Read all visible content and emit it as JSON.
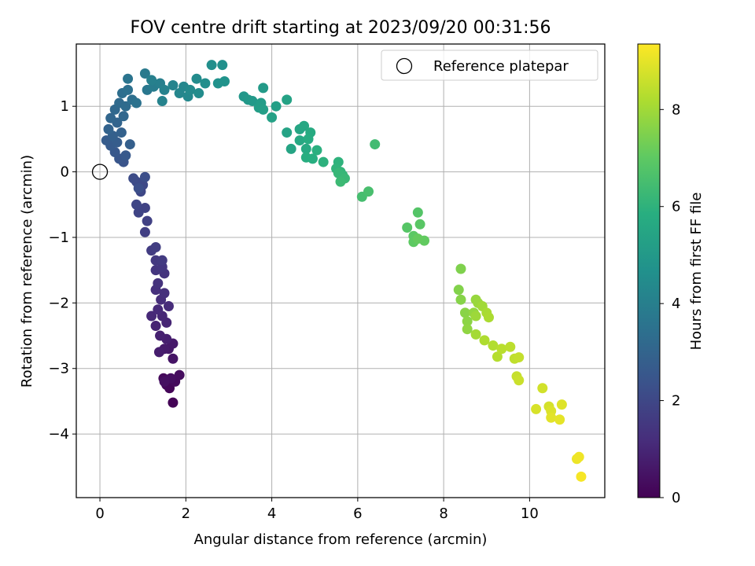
{
  "chart_data": {
    "type": "scatter",
    "title": "FOV centre drift starting at 2023/09/20 00:31:56",
    "xlabel": "Angular distance from reference (arcmin)",
    "ylabel": "Rotation from reference (arcmin)",
    "xlim": [
      -0.55,
      11.75
    ],
    "ylim": [
      -4.97,
      1.95
    ],
    "xticks": [
      0,
      2,
      4,
      6,
      8,
      10
    ],
    "yticks": [
      1,
      0,
      -1,
      -2,
      -3,
      -4
    ],
    "xtick_labels": [
      "0",
      "2",
      "4",
      "6",
      "8",
      "10"
    ],
    "ytick_labels": [
      "1",
      "0",
      "−1",
      "−2",
      "−3",
      "−4"
    ],
    "grid": true,
    "legend": {
      "position": "top-right",
      "entries": [
        {
          "label": "Reference platepar",
          "marker": "open-circle"
        }
      ]
    },
    "reference_point": {
      "x": 0,
      "y": 0
    },
    "colormap": "viridis",
    "colorbar": {
      "label": "Hours from first FF file",
      "range": [
        0,
        9.35
      ],
      "ticks": [
        0,
        2,
        4,
        6,
        8
      ],
      "tick_labels": [
        "0",
        "2",
        "4",
        "6",
        "8"
      ]
    },
    "points": [
      {
        "x": 1.7,
        "y": -3.52,
        "h": 0.05
      },
      {
        "x": 1.62,
        "y": -3.3,
        "h": 0.1
      },
      {
        "x": 1.55,
        "y": -3.25,
        "h": 0.15
      },
      {
        "x": 1.48,
        "y": -3.15,
        "h": 0.2
      },
      {
        "x": 1.75,
        "y": -3.2,
        "h": 0.25
      },
      {
        "x": 1.85,
        "y": -3.1,
        "h": 0.3
      },
      {
        "x": 1.65,
        "y": -3.15,
        "h": 0.35
      },
      {
        "x": 1.5,
        "y": -3.2,
        "h": 0.4
      },
      {
        "x": 1.7,
        "y": -2.85,
        "h": 0.5
      },
      {
        "x": 1.6,
        "y": -2.7,
        "h": 0.6
      },
      {
        "x": 1.7,
        "y": -2.62,
        "h": 0.65
      },
      {
        "x": 1.5,
        "y": -2.7,
        "h": 0.7
      },
      {
        "x": 1.38,
        "y": -2.75,
        "h": 0.75
      },
      {
        "x": 1.55,
        "y": -2.55,
        "h": 0.8
      },
      {
        "x": 1.4,
        "y": -2.5,
        "h": 0.85
      },
      {
        "x": 1.3,
        "y": -2.35,
        "h": 0.9
      },
      {
        "x": 1.55,
        "y": -2.3,
        "h": 0.95
      },
      {
        "x": 1.45,
        "y": -2.2,
        "h": 1.0
      },
      {
        "x": 1.2,
        "y": -2.2,
        "h": 1.05
      },
      {
        "x": 1.35,
        "y": -2.1,
        "h": 1.1
      },
      {
        "x": 1.6,
        "y": -2.05,
        "h": 1.15
      },
      {
        "x": 1.42,
        "y": -1.95,
        "h": 1.2
      },
      {
        "x": 1.5,
        "y": -1.85,
        "h": 1.25
      },
      {
        "x": 1.3,
        "y": -1.8,
        "h": 1.3
      },
      {
        "x": 1.35,
        "y": -1.7,
        "h": 1.35
      },
      {
        "x": 1.5,
        "y": -1.55,
        "h": 1.4
      },
      {
        "x": 1.3,
        "y": -1.5,
        "h": 1.45
      },
      {
        "x": 1.45,
        "y": -1.45,
        "h": 1.5
      },
      {
        "x": 1.3,
        "y": -1.35,
        "h": 1.55
      },
      {
        "x": 1.45,
        "y": -1.35,
        "h": 1.6
      },
      {
        "x": 1.2,
        "y": -1.2,
        "h": 1.65
      },
      {
        "x": 1.3,
        "y": -1.15,
        "h": 1.7
      },
      {
        "x": 1.05,
        "y": -0.92,
        "h": 1.75
      },
      {
        "x": 1.1,
        "y": -0.75,
        "h": 1.8
      },
      {
        "x": 1.05,
        "y": -0.55,
        "h": 1.85
      },
      {
        "x": 0.9,
        "y": -0.62,
        "h": 1.9
      },
      {
        "x": 0.85,
        "y": -0.5,
        "h": 1.95
      },
      {
        "x": 0.95,
        "y": -0.3,
        "h": 2.0
      },
      {
        "x": 1.0,
        "y": -0.2,
        "h": 2.05
      },
      {
        "x": 0.85,
        "y": -0.15,
        "h": 2.1
      },
      {
        "x": 0.78,
        "y": -0.1,
        "h": 2.15
      },
      {
        "x": 1.05,
        "y": -0.08,
        "h": 2.2
      },
      {
        "x": 0.9,
        "y": -0.25,
        "h": 2.25
      },
      {
        "x": 0.55,
        "y": 0.15,
        "h": 2.4
      },
      {
        "x": 0.45,
        "y": 0.2,
        "h": 2.5
      },
      {
        "x": 0.35,
        "y": 0.3,
        "h": 2.55
      },
      {
        "x": 0.6,
        "y": 0.25,
        "h": 2.6
      },
      {
        "x": 0.25,
        "y": 0.4,
        "h": 2.65
      },
      {
        "x": 0.15,
        "y": 0.48,
        "h": 2.7
      },
      {
        "x": 0.4,
        "y": 0.45,
        "h": 2.75
      },
      {
        "x": 0.7,
        "y": 0.42,
        "h": 2.8
      },
      {
        "x": 0.3,
        "y": 0.55,
        "h": 2.85
      },
      {
        "x": 0.5,
        "y": 0.6,
        "h": 2.9
      },
      {
        "x": 0.2,
        "y": 0.65,
        "h": 2.95
      },
      {
        "x": 0.4,
        "y": 0.75,
        "h": 3.0
      },
      {
        "x": 0.25,
        "y": 0.82,
        "h": 3.05
      },
      {
        "x": 0.55,
        "y": 0.85,
        "h": 3.1
      },
      {
        "x": 0.35,
        "y": 0.95,
        "h": 3.15
      },
      {
        "x": 0.45,
        "y": 1.05,
        "h": 3.2
      },
      {
        "x": 0.6,
        "y": 1.0,
        "h": 3.25
      },
      {
        "x": 0.52,
        "y": 1.2,
        "h": 3.35
      },
      {
        "x": 0.75,
        "y": 1.1,
        "h": 3.4
      },
      {
        "x": 0.65,
        "y": 1.25,
        "h": 3.45
      },
      {
        "x": 0.85,
        "y": 1.05,
        "h": 3.5
      },
      {
        "x": 0.65,
        "y": 1.42,
        "h": 3.6
      },
      {
        "x": 1.1,
        "y": 1.25,
        "h": 3.7
      },
      {
        "x": 1.05,
        "y": 1.5,
        "h": 3.8
      },
      {
        "x": 1.25,
        "y": 1.3,
        "h": 3.9
      },
      {
        "x": 1.4,
        "y": 1.35,
        "h": 4.0
      },
      {
        "x": 1.2,
        "y": 1.4,
        "h": 4.05
      },
      {
        "x": 1.5,
        "y": 1.25,
        "h": 4.1
      },
      {
        "x": 1.45,
        "y": 1.08,
        "h": 4.15
      },
      {
        "x": 1.7,
        "y": 1.32,
        "h": 4.2
      },
      {
        "x": 1.85,
        "y": 1.2,
        "h": 4.25
      },
      {
        "x": 1.95,
        "y": 1.3,
        "h": 4.3
      },
      {
        "x": 2.05,
        "y": 1.15,
        "h": 4.35
      },
      {
        "x": 2.1,
        "y": 1.25,
        "h": 4.4
      },
      {
        "x": 2.25,
        "y": 1.42,
        "h": 4.45
      },
      {
        "x": 2.3,
        "y": 1.2,
        "h": 4.5
      },
      {
        "x": 2.45,
        "y": 1.35,
        "h": 4.55
      },
      {
        "x": 2.6,
        "y": 1.63,
        "h": 4.6
      },
      {
        "x": 2.85,
        "y": 1.63,
        "h": 4.65
      },
      {
        "x": 2.75,
        "y": 1.35,
        "h": 4.7
      },
      {
        "x": 2.9,
        "y": 1.38,
        "h": 4.75
      },
      {
        "x": 3.35,
        "y": 1.15,
        "h": 4.9
      },
      {
        "x": 3.45,
        "y": 1.1,
        "h": 4.95
      },
      {
        "x": 3.55,
        "y": 1.08,
        "h": 5.0
      },
      {
        "x": 3.8,
        "y": 1.28,
        "h": 5.05
      },
      {
        "x": 3.75,
        "y": 1.05,
        "h": 5.1
      },
      {
        "x": 3.7,
        "y": 0.98,
        "h": 5.15
      },
      {
        "x": 3.8,
        "y": 0.95,
        "h": 5.2
      },
      {
        "x": 4.1,
        "y": 1.0,
        "h": 5.25
      },
      {
        "x": 4.0,
        "y": 0.83,
        "h": 5.3
      },
      {
        "x": 4.35,
        "y": 1.1,
        "h": 5.35
      },
      {
        "x": 4.35,
        "y": 0.6,
        "h": 5.4
      },
      {
        "x": 4.45,
        "y": 0.35,
        "h": 5.45
      },
      {
        "x": 4.65,
        "y": 0.65,
        "h": 5.5
      },
      {
        "x": 4.75,
        "y": 0.7,
        "h": 5.55
      },
      {
        "x": 4.65,
        "y": 0.48,
        "h": 5.6
      },
      {
        "x": 4.8,
        "y": 0.35,
        "h": 5.65
      },
      {
        "x": 4.9,
        "y": 0.6,
        "h": 5.7
      },
      {
        "x": 4.85,
        "y": 0.5,
        "h": 5.75
      },
      {
        "x": 4.8,
        "y": 0.22,
        "h": 5.8
      },
      {
        "x": 4.95,
        "y": 0.2,
        "h": 5.85
      },
      {
        "x": 5.05,
        "y": 0.33,
        "h": 5.9
      },
      {
        "x": 5.2,
        "y": 0.15,
        "h": 5.95
      },
      {
        "x": 5.55,
        "y": 0.15,
        "h": 6.0
      },
      {
        "x": 5.5,
        "y": 0.05,
        "h": 6.05
      },
      {
        "x": 5.6,
        "y": 0.0,
        "h": 6.1
      },
      {
        "x": 5.65,
        "y": -0.05,
        "h": 6.15
      },
      {
        "x": 5.55,
        "y": -0.02,
        "h": 6.2
      },
      {
        "x": 5.7,
        "y": -0.1,
        "h": 6.25
      },
      {
        "x": 5.6,
        "y": -0.15,
        "h": 6.3
      },
      {
        "x": 6.4,
        "y": 0.42,
        "h": 6.4
      },
      {
        "x": 6.1,
        "y": -0.38,
        "h": 6.5
      },
      {
        "x": 6.25,
        "y": -0.3,
        "h": 6.55
      },
      {
        "x": 7.4,
        "y": -0.62,
        "h": 6.8
      },
      {
        "x": 7.15,
        "y": -0.85,
        "h": 6.85
      },
      {
        "x": 7.45,
        "y": -0.8,
        "h": 6.9
      },
      {
        "x": 7.3,
        "y": -0.98,
        "h": 6.95
      },
      {
        "x": 7.3,
        "y": -1.07,
        "h": 7.0
      },
      {
        "x": 7.55,
        "y": -1.05,
        "h": 7.05
      },
      {
        "x": 7.4,
        "y": -1.02,
        "h": 7.1
      },
      {
        "x": 8.4,
        "y": -1.48,
        "h": 7.5
      },
      {
        "x": 8.35,
        "y": -1.8,
        "h": 7.55
      },
      {
        "x": 8.4,
        "y": -1.95,
        "h": 7.6
      },
      {
        "x": 8.5,
        "y": -2.15,
        "h": 7.65
      },
      {
        "x": 8.55,
        "y": -2.28,
        "h": 7.7
      },
      {
        "x": 8.55,
        "y": -2.4,
        "h": 7.75
      },
      {
        "x": 8.7,
        "y": -2.15,
        "h": 7.8
      },
      {
        "x": 8.75,
        "y": -1.95,
        "h": 7.85
      },
      {
        "x": 8.8,
        "y": -2.0,
        "h": 7.9
      },
      {
        "x": 8.75,
        "y": -2.2,
        "h": 7.95
      },
      {
        "x": 8.9,
        "y": -2.05,
        "h": 8.0
      },
      {
        "x": 8.75,
        "y": -2.48,
        "h": 8.05
      },
      {
        "x": 9.0,
        "y": -2.15,
        "h": 8.1
      },
      {
        "x": 9.05,
        "y": -2.22,
        "h": 8.15
      },
      {
        "x": 8.95,
        "y": -2.57,
        "h": 8.2
      },
      {
        "x": 9.15,
        "y": -2.65,
        "h": 8.25
      },
      {
        "x": 9.25,
        "y": -2.82,
        "h": 8.3
      },
      {
        "x": 9.35,
        "y": -2.7,
        "h": 8.35
      },
      {
        "x": 9.55,
        "y": -2.67,
        "h": 8.4
      },
      {
        "x": 9.65,
        "y": -2.85,
        "h": 8.45
      },
      {
        "x": 9.75,
        "y": -2.83,
        "h": 8.5
      },
      {
        "x": 9.7,
        "y": -3.12,
        "h": 8.55
      },
      {
        "x": 9.75,
        "y": -3.18,
        "h": 8.6
      },
      {
        "x": 10.3,
        "y": -3.3,
        "h": 8.7
      },
      {
        "x": 10.45,
        "y": -3.58,
        "h": 8.75
      },
      {
        "x": 10.15,
        "y": -3.62,
        "h": 8.8
      },
      {
        "x": 10.5,
        "y": -3.65,
        "h": 8.85
      },
      {
        "x": 10.75,
        "y": -3.55,
        "h": 8.9
      },
      {
        "x": 10.5,
        "y": -3.75,
        "h": 8.95
      },
      {
        "x": 10.7,
        "y": -3.78,
        "h": 9.0
      },
      {
        "x": 11.1,
        "y": -4.38,
        "h": 9.1
      },
      {
        "x": 11.15,
        "y": -4.35,
        "h": 9.15
      },
      {
        "x": 11.2,
        "y": -4.65,
        "h": 9.25
      }
    ]
  }
}
